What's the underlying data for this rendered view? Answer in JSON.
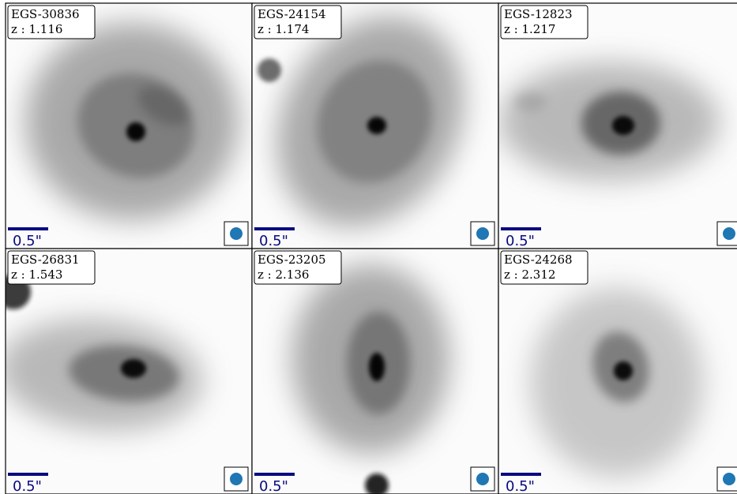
{
  "panels": [
    {
      "id": "EGS-30836",
      "z": "z : 1.116",
      "scale": "0.5\""
    },
    {
      "id": "EGS-24154",
      "z": "z : 1.174",
      "scale": "0.5\""
    },
    {
      "id": "EGS-12823",
      "z": "z : 1.217",
      "scale": "0.5\""
    },
    {
      "id": "EGS-26831",
      "z": "z : 1.543",
      "scale": "0.5\""
    },
    {
      "id": "EGS-23205",
      "z": "z : 2.136",
      "scale": "0.5\""
    },
    {
      "id": "EGS-24268",
      "z": "z : 2.312",
      "scale": "0.5\""
    }
  ]
}
